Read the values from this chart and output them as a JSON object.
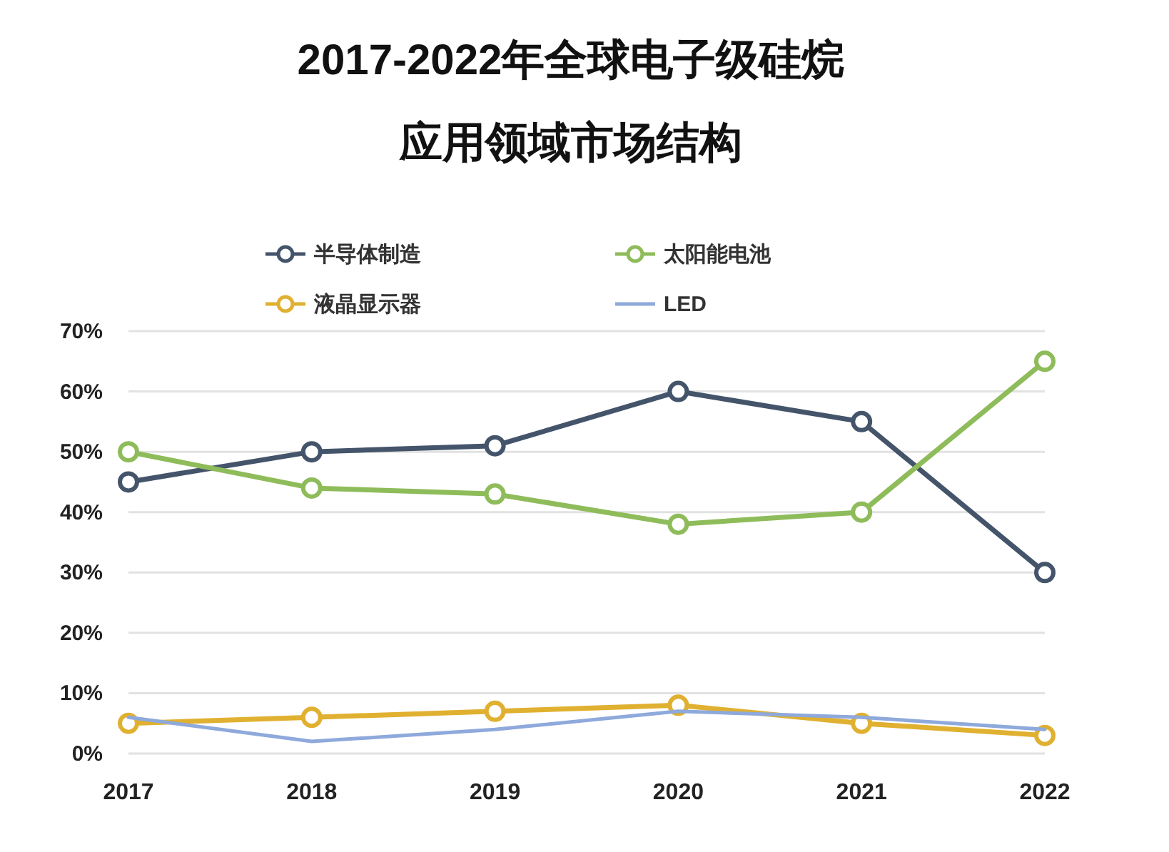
{
  "chart_data": {
    "type": "line",
    "title": "2017-2022年全球电子级硅烷",
    "subtitle": "应用领域市场结构",
    "categories": [
      "2017",
      "2018",
      "2019",
      "2020",
      "2021",
      "2022"
    ],
    "series": [
      {
        "name": "半导体制造",
        "color": "#44546a",
        "values": [
          45,
          50,
          51,
          60,
          55,
          30
        ],
        "marker": "circle"
      },
      {
        "name": "太阳能电池",
        "color": "#8fbc5a",
        "values": [
          50,
          44,
          43,
          38,
          40,
          65
        ],
        "marker": "circle"
      },
      {
        "name": "液晶显示器",
        "color": "#e0b030",
        "values": [
          5,
          6,
          7,
          8,
          5,
          3
        ],
        "marker": "circle"
      },
      {
        "name": "LED",
        "color": "#8ea9db",
        "values": [
          6,
          2,
          4,
          7,
          6,
          4
        ],
        "marker": "none"
      }
    ],
    "ylim": [
      0,
      70
    ],
    "yticks": [
      {
        "value": 0,
        "label": "0%"
      },
      {
        "value": 10,
        "label": "10%"
      },
      {
        "value": 20,
        "label": "20%"
      },
      {
        "value": 30,
        "label": "30%"
      },
      {
        "value": 40,
        "label": "40%"
      },
      {
        "value": 50,
        "label": "50%"
      },
      {
        "value": 60,
        "label": "60%"
      },
      {
        "value": 70,
        "label": "70%"
      }
    ],
    "grid": "y",
    "legend": "top"
  }
}
